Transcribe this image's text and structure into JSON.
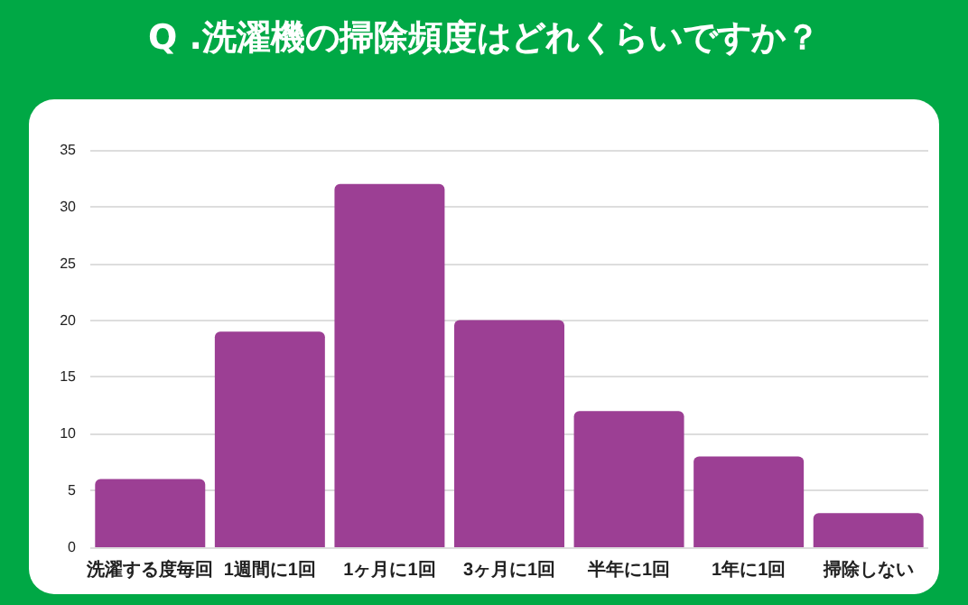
{
  "chart_data": {
    "type": "bar",
    "title": "Q .洗濯機の掃除頻度はどれくらいですか？",
    "categories": [
      "洗濯する度毎回",
      "1週間に1回",
      "1ヶ月に1回",
      "3ヶ月に1回",
      "半年に1回",
      "1年に1回",
      "掃除しない"
    ],
    "values": [
      6,
      19,
      32,
      20,
      12,
      8,
      3
    ],
    "color": "#9c3f94",
    "ylim": [
      0,
      35
    ],
    "yticks": [
      0,
      5,
      10,
      15,
      20,
      25,
      30,
      35
    ],
    "grid": "y"
  }
}
